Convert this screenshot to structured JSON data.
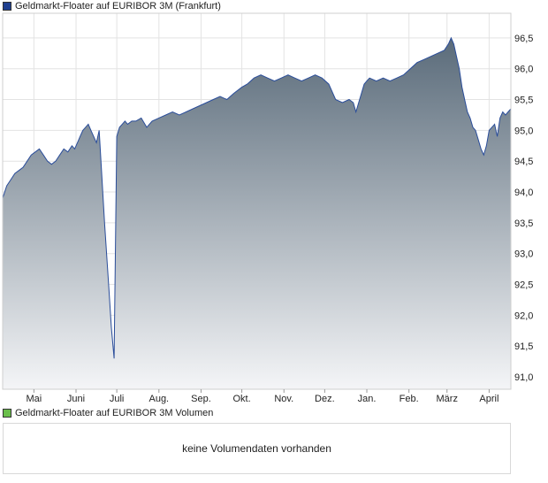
{
  "legend": {
    "price_label": "Geldmarkt-Floater auf EURIBOR 3M (Frankfurt)",
    "price_color": "#1f3f8f",
    "volume_label": "Geldmarkt-Floater auf EURIBOR 3M Volumen",
    "volume_color": "#6abf4b"
  },
  "volume_panel": {
    "message": "keine Volumendaten vorhanden"
  },
  "colors": {
    "line": "#2a4d9a",
    "area_top": "#5a6b7a",
    "area_bottom": "#f4f5f7",
    "grid": "#e3e3e3"
  },
  "chart_data": {
    "type": "area",
    "ylim": [
      90.8,
      96.9
    ],
    "yticks": [
      91.0,
      91.5,
      92.0,
      92.5,
      93.0,
      93.5,
      94.0,
      94.5,
      95.0,
      95.5,
      96.0,
      96.5
    ],
    "ytick_labels": [
      "91,0",
      "91,5",
      "92,0",
      "92,5",
      "93,0",
      "93,5",
      "94,0",
      "94,5",
      "95,0",
      "95,5",
      "96,0",
      "96,5"
    ],
    "xlim": [
      0,
      374
    ],
    "xticks": [
      {
        "label": "Mai",
        "x": 23
      },
      {
        "label": "Juni",
        "x": 54
      },
      {
        "label": "Juli",
        "x": 84
      },
      {
        "label": "Aug.",
        "x": 115
      },
      {
        "label": "Sep.",
        "x": 146
      },
      {
        "label": "Okt.",
        "x": 176
      },
      {
        "label": "Nov.",
        "x": 207
      },
      {
        "label": "Dez.",
        "x": 237
      },
      {
        "label": "Jan.",
        "x": 268
      },
      {
        "label": "Feb.",
        "x": 299
      },
      {
        "label": "März",
        "x": 327
      },
      {
        "label": "April",
        "x": 358
      }
    ],
    "series": [
      {
        "x": [
          0,
          3,
          6,
          9,
          12,
          15,
          18,
          21,
          24,
          27,
          30,
          33,
          36,
          39,
          42,
          45,
          48,
          51,
          53,
          55,
          57,
          59,
          61,
          63,
          65,
          67,
          69,
          71,
          75,
          78,
          80,
          82,
          84,
          86,
          88,
          90,
          92,
          95,
          98,
          102,
          106,
          110,
          115,
          120,
          125,
          130,
          135,
          140,
          145,
          150,
          155,
          160,
          165,
          170,
          176,
          180,
          185,
          190,
          195,
          200,
          205,
          210,
          215,
          220,
          225,
          230,
          235,
          240,
          245,
          250,
          255,
          258,
          260,
          262,
          264,
          266,
          268,
          270,
          275,
          280,
          285,
          290,
          295,
          300,
          305,
          310,
          315,
          320,
          325,
          328,
          330,
          332,
          334,
          336,
          338,
          340,
          342,
          344,
          346,
          348,
          350,
          352,
          354,
          356,
          358,
          360,
          362,
          364,
          366,
          368,
          370,
          372,
          374
        ],
        "y": [
          93.9,
          94.1,
          94.2,
          94.3,
          94.35,
          94.4,
          94.5,
          94.6,
          94.65,
          94.7,
          94.6,
          94.5,
          94.45,
          94.5,
          94.6,
          94.7,
          94.65,
          94.75,
          94.7,
          94.8,
          94.9,
          95.0,
          95.05,
          95.1,
          95.0,
          94.9,
          94.8,
          95.0,
          93.5,
          92.5,
          91.8,
          91.3,
          94.9,
          95.05,
          95.1,
          95.15,
          95.1,
          95.15,
          95.15,
          95.2,
          95.05,
          95.15,
          95.2,
          95.25,
          95.3,
          95.25,
          95.3,
          95.35,
          95.4,
          95.45,
          95.5,
          95.55,
          95.5,
          95.6,
          95.7,
          95.75,
          95.85,
          95.9,
          95.85,
          95.8,
          95.85,
          95.9,
          95.85,
          95.8,
          95.85,
          95.9,
          95.85,
          95.75,
          95.5,
          95.45,
          95.5,
          95.45,
          95.3,
          95.45,
          95.6,
          95.75,
          95.8,
          95.85,
          95.8,
          95.85,
          95.8,
          95.85,
          95.9,
          96.0,
          96.1,
          96.15,
          96.2,
          96.25,
          96.3,
          96.4,
          96.5,
          96.4,
          96.2,
          96.0,
          95.7,
          95.5,
          95.3,
          95.2,
          95.05,
          95.0,
          94.85,
          94.7,
          94.6,
          94.75,
          95.0,
          95.05,
          95.1,
          94.9,
          95.2,
          95.3,
          95.25,
          95.3,
          95.35
        ]
      }
    ]
  }
}
